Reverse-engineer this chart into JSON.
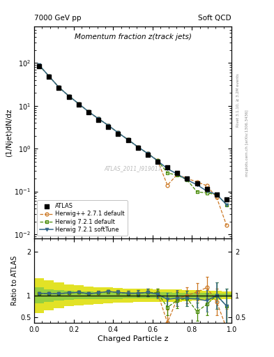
{
  "title_left": "7000 GeV pp",
  "title_right": "Soft QCD",
  "plot_title": "Momentum fraction z(track jets)",
  "xlabel": "Charged Particle z",
  "ylabel_main": "(1/Njet)dN/dz",
  "ylabel_ratio": "Ratio to ATLAS",
  "right_label_top": "Rivet 3.1.10, ≥ 3.2M events",
  "right_label_bottom": "mcplots.cern.ch [arXiv:1306.3436]",
  "watermark": "ATLAS_2011_I919017",
  "legend_entries": [
    "ATLAS",
    "Herwig++ 2.7.1 default",
    "Herwig 7.2.1 default",
    "Herwig 7.2.1 softTune"
  ],
  "atlas_color": "#000000",
  "hpp_color": "#cc7722",
  "h721d_color": "#448800",
  "h721s_color": "#336688",
  "band_inner_color": "#88cc44",
  "band_outer_color": "#dddd00",
  "z_data": [
    0.025,
    0.075,
    0.125,
    0.175,
    0.225,
    0.275,
    0.325,
    0.375,
    0.425,
    0.475,
    0.525,
    0.575,
    0.625,
    0.675,
    0.725,
    0.775,
    0.825,
    0.875,
    0.925,
    0.975
  ],
  "y_atlas": [
    85,
    47,
    26,
    16,
    10.5,
    7.0,
    4.7,
    3.2,
    2.2,
    1.55,
    1.05,
    0.72,
    0.5,
    0.37,
    0.27,
    0.2,
    0.155,
    0.115,
    0.085,
    0.065
  ],
  "y_hpp": [
    88,
    49,
    27,
    17,
    11.2,
    7.3,
    5.0,
    3.5,
    2.35,
    1.62,
    1.1,
    0.77,
    0.53,
    0.14,
    0.25,
    0.2,
    0.167,
    0.136,
    0.072,
    0.016
  ],
  "y_h721d": [
    88,
    49,
    27,
    17,
    11.2,
    7.3,
    5.0,
    3.5,
    2.35,
    1.62,
    1.1,
    0.77,
    0.53,
    0.27,
    0.24,
    0.186,
    0.098,
    0.092,
    0.085,
    0.049
  ],
  "y_h721s": [
    89,
    49,
    27,
    17,
    11.2,
    7.3,
    5.0,
    3.5,
    2.35,
    1.62,
    1.1,
    0.77,
    0.52,
    0.34,
    0.254,
    0.186,
    0.143,
    0.102,
    0.085,
    0.049
  ],
  "ratio_hpp": [
    1.04,
    1.04,
    1.04,
    1.06,
    1.07,
    1.04,
    1.06,
    1.09,
    1.07,
    1.05,
    1.05,
    1.07,
    1.06,
    0.38,
    0.93,
    1.0,
    1.08,
    1.18,
    0.85,
    0.25
  ],
  "ratio_h721d": [
    1.04,
    1.04,
    1.04,
    1.06,
    1.07,
    1.04,
    1.06,
    1.09,
    1.07,
    1.05,
    1.05,
    1.07,
    1.06,
    0.73,
    0.89,
    0.93,
    0.63,
    0.8,
    1.0,
    0.76
  ],
  "ratio_h721s": [
    1.05,
    1.04,
    1.04,
    1.06,
    1.07,
    1.04,
    1.06,
    1.09,
    1.07,
    1.05,
    1.05,
    1.07,
    1.03,
    0.91,
    0.94,
    0.93,
    0.92,
    0.88,
    1.0,
    0.76
  ],
  "err_hpp": [
    0.03,
    0.03,
    0.02,
    0.02,
    0.03,
    0.03,
    0.04,
    0.04,
    0.05,
    0.06,
    0.07,
    0.09,
    0.1,
    0.3,
    0.18,
    0.18,
    0.2,
    0.25,
    0.3,
    0.45
  ],
  "err_h721d": [
    0.03,
    0.03,
    0.02,
    0.02,
    0.03,
    0.03,
    0.04,
    0.04,
    0.05,
    0.06,
    0.07,
    0.09,
    0.1,
    0.18,
    0.18,
    0.18,
    0.2,
    0.25,
    0.3,
    0.4
  ],
  "err_h721s": [
    0.03,
    0.03,
    0.02,
    0.02,
    0.03,
    0.03,
    0.04,
    0.04,
    0.05,
    0.06,
    0.07,
    0.09,
    0.1,
    0.15,
    0.18,
    0.18,
    0.2,
    0.25,
    0.3,
    0.4
  ],
  "band_inner_lo": [
    0.82,
    0.86,
    0.88,
    0.9,
    0.91,
    0.91,
    0.92,
    0.92,
    0.92,
    0.93,
    0.93,
    0.93,
    0.93,
    0.93,
    0.94,
    0.94,
    0.94,
    0.94,
    0.95,
    0.96
  ],
  "band_inner_hi": [
    1.18,
    1.14,
    1.12,
    1.1,
    1.09,
    1.09,
    1.08,
    1.08,
    1.08,
    1.07,
    1.07,
    1.07,
    1.07,
    1.07,
    1.06,
    1.06,
    1.06,
    1.06,
    1.05,
    1.04
  ],
  "band_outer_lo": [
    0.6,
    0.66,
    0.71,
    0.75,
    0.77,
    0.79,
    0.81,
    0.82,
    0.83,
    0.84,
    0.85,
    0.85,
    0.86,
    0.86,
    0.86,
    0.87,
    0.88,
    0.89,
    0.9,
    0.91
  ],
  "band_outer_hi": [
    1.4,
    1.34,
    1.29,
    1.25,
    1.23,
    1.21,
    1.19,
    1.18,
    1.17,
    1.16,
    1.15,
    1.15,
    1.14,
    1.14,
    1.14,
    1.13,
    1.12,
    1.11,
    1.1,
    1.09
  ],
  "xlim": [
    0.0,
    1.0
  ],
  "ylim_main": [
    0.008,
    700
  ],
  "ylim_ratio": [
    0.37,
    2.3
  ],
  "ratio_yticks": [
    0.5,
    1.0,
    2.0
  ],
  "ratio_yticklabels": [
    "0.5",
    "1",
    "2"
  ]
}
